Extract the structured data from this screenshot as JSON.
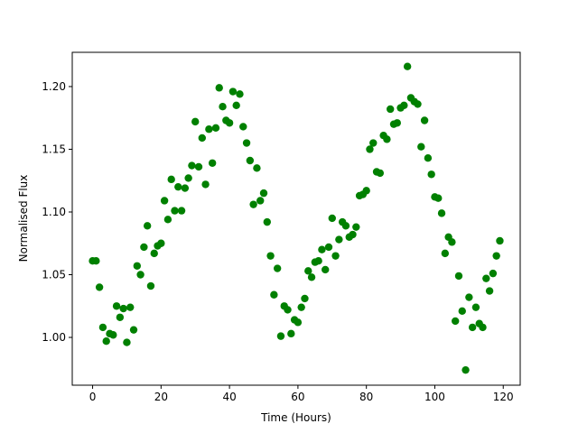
{
  "chart_data": {
    "type": "scatter",
    "x_label": "Time (Hours)",
    "y_label": "Normalised Flux",
    "color": "#008000",
    "x": [
      0,
      1,
      2,
      3,
      4,
      5,
      6,
      7,
      8,
      9,
      10,
      11,
      12,
      13,
      14,
      15,
      16,
      17,
      18,
      19,
      20,
      21,
      22,
      23,
      24,
      25,
      26,
      27,
      28,
      29,
      30,
      31,
      32,
      33,
      34,
      35,
      36,
      37,
      38,
      39,
      40,
      41,
      42,
      43,
      44,
      45,
      46,
      47,
      48,
      49,
      50,
      51,
      52,
      53,
      54,
      55,
      56,
      57,
      58,
      59,
      60,
      61,
      62,
      63,
      64,
      65,
      66,
      67,
      68,
      69,
      70,
      71,
      72,
      73,
      74,
      75,
      76,
      77,
      78,
      79,
      80,
      81,
      82,
      83,
      84,
      85,
      86,
      87,
      88,
      89,
      90,
      91,
      92,
      93,
      94,
      95,
      96,
      97,
      98,
      99,
      100,
      101,
      102,
      103,
      104,
      105,
      106,
      107,
      108,
      109,
      110,
      111,
      112,
      113,
      114,
      115,
      116,
      117,
      118,
      119
    ],
    "values": [
      1.061,
      1.061,
      1.04,
      1.008,
      0.997,
      1.003,
      1.002,
      1.025,
      1.016,
      1.023,
      0.996,
      1.024,
      1.006,
      1.057,
      1.05,
      1.072,
      1.089,
      1.041,
      1.067,
      1.073,
      1.075,
      1.109,
      1.094,
      1.126,
      1.101,
      1.12,
      1.101,
      1.119,
      1.127,
      1.137,
      1.172,
      1.136,
      1.159,
      1.122,
      1.166,
      1.139,
      1.167,
      1.199,
      1.184,
      1.173,
      1.171,
      1.196,
      1.185,
      1.194,
      1.168,
      1.155,
      1.141,
      1.106,
      1.135,
      1.109,
      1.115,
      1.092,
      1.065,
      1.034,
      1.055,
      1.001,
      1.025,
      1.022,
      1.003,
      1.014,
      1.012,
      1.024,
      1.031,
      1.053,
      1.048,
      1.06,
      1.061,
      1.07,
      1.054,
      1.072,
      1.095,
      1.065,
      1.078,
      1.092,
      1.089,
      1.08,
      1.082,
      1.088,
      1.113,
      1.114,
      1.117,
      1.15,
      1.155,
      1.132,
      1.131,
      1.161,
      1.158,
      1.182,
      1.17,
      1.171,
      1.183,
      1.185,
      1.216,
      1.191,
      1.188,
      1.186,
      1.152,
      1.173,
      1.143,
      1.13,
      1.112,
      1.111,
      1.099,
      1.067,
      1.08,
      1.076,
      1.013,
      1.049,
      1.021,
      0.974,
      1.032,
      1.008,
      1.024,
      1.011,
      1.008,
      1.047,
      1.037,
      1.051,
      1.065,
      1.077
    ],
    "xlim": [
      -5.95,
      124.95
    ],
    "ylim": [
      0.9619,
      1.2273
    ],
    "xticks": [
      0,
      20,
      40,
      60,
      80,
      100,
      120
    ],
    "yticks": [
      {
        "value": 1.0,
        "label": "1.00"
      },
      {
        "value": 1.05,
        "label": "1.05"
      },
      {
        "value": 1.1,
        "label": "1.10"
      },
      {
        "value": 1.15,
        "label": "1.15"
      },
      {
        "value": 1.2,
        "label": "1.20"
      }
    ]
  }
}
